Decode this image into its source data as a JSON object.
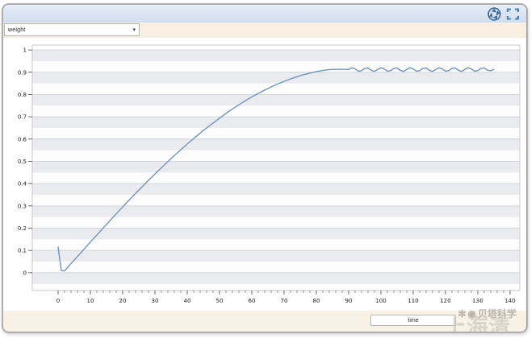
{
  "window": {
    "titlebar": {
      "icons": [
        {
          "name": "aperture-icon"
        },
        {
          "name": "fullscreen-icon"
        }
      ]
    },
    "toolbar": {
      "series_select": {
        "value": "weight"
      }
    },
    "x_axis_field": {
      "value": "time"
    },
    "watermark": {
      "flower_glyph": "✻",
      "logo_glyph": "◉",
      "handle": "贝塔科学",
      "large_text": "上海清"
    },
    "icons": {
      "chevron_down": "▾"
    },
    "colors": {
      "accent_blue": "#4d7fb5",
      "titlebar_top": "#e6edf7",
      "titlebar_bottom": "#cfddee",
      "toolbar_bg": "#f6efe2"
    }
  },
  "chart_data": {
    "type": "line",
    "title": "",
    "xlabel": "time",
    "ylabel": "weight",
    "xlim": [
      -8,
      143
    ],
    "ylim": [
      -0.08,
      1.022
    ],
    "x_ticks": [
      0,
      10,
      20,
      30,
      40,
      50,
      60,
      70,
      80,
      90,
      100,
      110,
      120,
      130,
      140
    ],
    "x_minor_step": 2,
    "y_ticks": [
      0,
      0.1,
      0.2,
      0.3,
      0.4,
      0.5,
      0.6,
      0.7,
      0.8,
      0.9,
      1
    ],
    "y_tick_labels": [
      "0",
      "0.1",
      "0.2",
      "0.3",
      "0.4",
      "0.5",
      "0.6",
      "0.7",
      "0.8",
      "0.9",
      "1"
    ],
    "grid": true,
    "legend": "none",
    "stripe_band": 0.05,
    "colors": {
      "line": "#7094c1",
      "stripe_gray": "#e9ebee",
      "plot_bg": "#fdfdfd",
      "gridline": "#d2d5da",
      "plot_border": "#c3c7cc",
      "tick": "#666666",
      "label": "#222222"
    },
    "series": [
      {
        "name": "weight",
        "points": [
          [
            0,
            0.115
          ],
          [
            1,
            0.01
          ],
          [
            2,
            0.008
          ],
          [
            4,
            0.041
          ],
          [
            6,
            0.073
          ],
          [
            8,
            0.105
          ],
          [
            10,
            0.138
          ],
          [
            12,
            0.169
          ],
          [
            14,
            0.201
          ],
          [
            16,
            0.233
          ],
          [
            18,
            0.264
          ],
          [
            20,
            0.295
          ],
          [
            22,
            0.326
          ],
          [
            24,
            0.356
          ],
          [
            26,
            0.385
          ],
          [
            28,
            0.415
          ],
          [
            30,
            0.443
          ],
          [
            32,
            0.471
          ],
          [
            34,
            0.499
          ],
          [
            36,
            0.526
          ],
          [
            38,
            0.552
          ],
          [
            40,
            0.578
          ],
          [
            42,
            0.602
          ],
          [
            44,
            0.627
          ],
          [
            46,
            0.65
          ],
          [
            48,
            0.672
          ],
          [
            50,
            0.694
          ],
          [
            52,
            0.715
          ],
          [
            54,
            0.735
          ],
          [
            56,
            0.754
          ],
          [
            58,
            0.772
          ],
          [
            60,
            0.789
          ],
          [
            62,
            0.805
          ],
          [
            64,
            0.82
          ],
          [
            66,
            0.834
          ],
          [
            68,
            0.847
          ],
          [
            70,
            0.859
          ],
          [
            72,
            0.87
          ],
          [
            74,
            0.88
          ],
          [
            76,
            0.889
          ],
          [
            78,
            0.896
          ],
          [
            80,
            0.903
          ],
          [
            82,
            0.908
          ],
          [
            84,
            0.912
          ],
          [
            86,
            0.913
          ],
          [
            88,
            0.914
          ],
          [
            90,
            0.912
          ],
          [
            91,
            0.92
          ],
          [
            92,
            0.915
          ],
          [
            93,
            0.905
          ],
          [
            94,
            0.907
          ],
          [
            95,
            0.917
          ],
          [
            96,
            0.919
          ],
          [
            97,
            0.909
          ],
          [
            98,
            0.904
          ],
          [
            99,
            0.912
          ],
          [
            100,
            0.92
          ],
          [
            101,
            0.915
          ],
          [
            102,
            0.905
          ],
          [
            103,
            0.907
          ],
          [
            104,
            0.917
          ],
          [
            105,
            0.919
          ],
          [
            106,
            0.909
          ],
          [
            107,
            0.904
          ],
          [
            108,
            0.912
          ],
          [
            109,
            0.92
          ],
          [
            110,
            0.915
          ],
          [
            111,
            0.905
          ],
          [
            112,
            0.907
          ],
          [
            113,
            0.917
          ],
          [
            114,
            0.919
          ],
          [
            115,
            0.909
          ],
          [
            116,
            0.904
          ],
          [
            117,
            0.912
          ],
          [
            118,
            0.92
          ],
          [
            119,
            0.915
          ],
          [
            120,
            0.905
          ],
          [
            121,
            0.907
          ],
          [
            122,
            0.917
          ],
          [
            123,
            0.919
          ],
          [
            124,
            0.909
          ],
          [
            125,
            0.904
          ],
          [
            126,
            0.912
          ],
          [
            127,
            0.92
          ],
          [
            128,
            0.915
          ],
          [
            129,
            0.905
          ],
          [
            130,
            0.907
          ],
          [
            131,
            0.917
          ],
          [
            132,
            0.919
          ],
          [
            133,
            0.909
          ],
          [
            134,
            0.907
          ],
          [
            135,
            0.912
          ]
        ]
      }
    ]
  }
}
